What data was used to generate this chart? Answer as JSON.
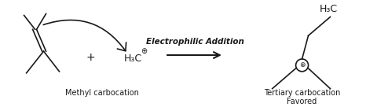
{
  "bg_color": "#ffffff",
  "fig_width": 4.8,
  "fig_height": 1.41,
  "dpi": 100,
  "reaction_arrow_label": "Electrophilic Addition",
  "label_methyl": "Methyl carbocation",
  "label_tertiary_line1": "Tertiary carbocation",
  "label_tertiary_line2": "Favored",
  "plus_sign": "+",
  "circle_plus": "⊕",
  "h3c": "H₃C"
}
